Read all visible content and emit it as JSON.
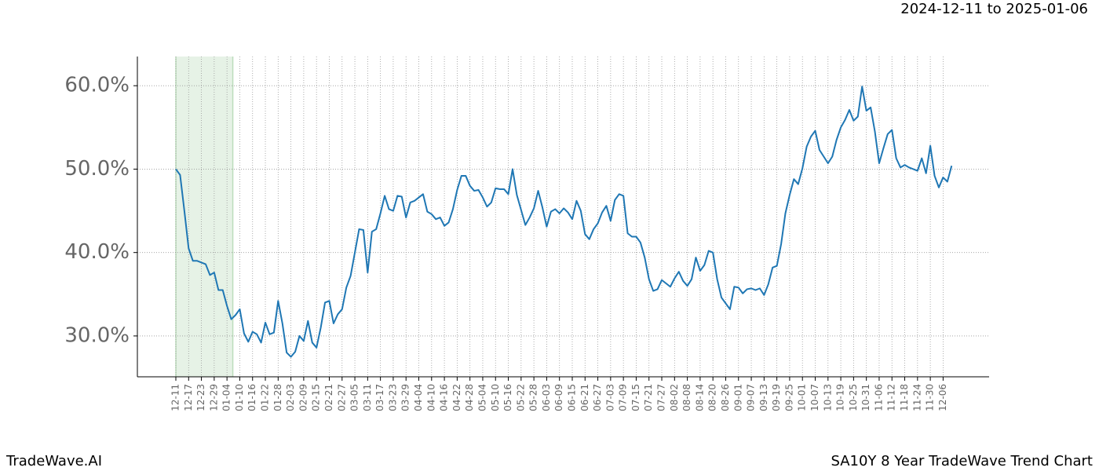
{
  "chart_data": {
    "type": "line",
    "date_range": "2024-12-11 to 2025-01-06",
    "footer_left": "TradeWave.AI",
    "footer_right": "SA10Y 8 Year TradeWave Trend Chart",
    "color": "#1f77b4",
    "grid": true,
    "shaded_range": [
      0,
      13
    ],
    "shade_color": "#e6f2e6",
    "categories": [
      "12-11",
      null,
      null,
      "12-17",
      null,
      null,
      "12-23",
      null,
      null,
      "12-29",
      null,
      null,
      "01-04",
      null,
      null,
      "01-10",
      null,
      null,
      "01-16",
      null,
      null,
      "01-22",
      null,
      null,
      "01-28",
      null,
      null,
      "02-03",
      null,
      null,
      "02-09",
      null,
      null,
      "02-15",
      null,
      null,
      "02-21",
      null,
      null,
      "02-27",
      null,
      null,
      "03-05",
      null,
      null,
      "03-11",
      null,
      null,
      "03-17",
      null,
      null,
      "03-23",
      null,
      null,
      "03-29",
      null,
      null,
      "04-04",
      null,
      null,
      "04-10",
      null,
      null,
      "04-16",
      null,
      null,
      "04-22",
      null,
      null,
      "04-28",
      null,
      null,
      "05-04",
      null,
      null,
      "05-10",
      null,
      null,
      "05-16",
      null,
      null,
      "05-22",
      null,
      null,
      "05-28",
      null,
      null,
      "06-03",
      null,
      null,
      "06-09",
      null,
      null,
      "06-15",
      null,
      null,
      "06-21",
      null,
      null,
      "06-27",
      null,
      null,
      "07-03",
      null,
      null,
      "07-09",
      null,
      null,
      "07-15",
      null,
      null,
      "07-21",
      null,
      null,
      "07-27",
      null,
      null,
      "08-02",
      null,
      null,
      "08-08",
      null,
      null,
      "08-14",
      null,
      null,
      "08-20",
      null,
      null,
      "08-26",
      null,
      null,
      "09-01",
      null,
      null,
      "09-07",
      null,
      null,
      "09-13",
      null,
      null,
      "09-19",
      null,
      null,
      "09-25",
      null,
      null,
      "10-01",
      null,
      null,
      "10-07",
      null,
      null,
      "10-13",
      null,
      null,
      "10-19",
      null,
      null,
      "10-25",
      null,
      null,
      "10-31",
      null,
      null,
      "11-06",
      null,
      null,
      "11-12",
      null,
      null,
      "11-18",
      null,
      null,
      "11-24",
      null,
      null,
      "11-30",
      null,
      null,
      "12-06",
      null,
      null
    ],
    "values": [
      50.0,
      49.3,
      45,
      40.5,
      39,
      39,
      38.8,
      38.6,
      37.3,
      37.6,
      35.5,
      35.5,
      33.6,
      32,
      32.5,
      33.2,
      30.3,
      29.3,
      30.5,
      30.2,
      29.2,
      31.6,
      30.2,
      30.4,
      34.2,
      31.5,
      28,
      27.5,
      28.1,
      30,
      29.4,
      31.8,
      29.2,
      28.6,
      31,
      34,
      34.2,
      31.5,
      32.6,
      33.2,
      35.8,
      37.2,
      40,
      42.8,
      42.7,
      37.6,
      42.5,
      42.8,
      44.7,
      46.8,
      45.2,
      45,
      46.8,
      46.7,
      44.2,
      46,
      46.2,
      46.6,
      47,
      44.9,
      44.6,
      44,
      44.2,
      43.2,
      43.6,
      45.2,
      47.5,
      49.2,
      49.2,
      48,
      47.4,
      47.5,
      46.6,
      45.5,
      46,
      47.7,
      47.6,
      47.6,
      47,
      50,
      46.9,
      45.1,
      43.3,
      44.2,
      45.3,
      47.4,
      45.4,
      43.1,
      44.9,
      45.2,
      44.7,
      45.3,
      44.8,
      44,
      46.2,
      45,
      42.2,
      41.6,
      42.8,
      43.5,
      44.8,
      45.6,
      43.8,
      46.3,
      47,
      46.8,
      42.3,
      41.9,
      41.9,
      41.2,
      39.4,
      36.8,
      35.4,
      35.6,
      36.7,
      36.3,
      35.9,
      36.9,
      37.7,
      36.6,
      36,
      36.8,
      39.4,
      37.8,
      38.5,
      40.2,
      40,
      36.8,
      34.6,
      33.9,
      33.2,
      35.9,
      35.8,
      35.1,
      35.6,
      35.7,
      35.5,
      35.7,
      34.9,
      36.2,
      38.2,
      38.4,
      41,
      44.7,
      46.9,
      48.8,
      48.2,
      50.1,
      52.7,
      53.9,
      54.6,
      52.3,
      51.5,
      50.7,
      51.5,
      53.5,
      55,
      55.9,
      57.1,
      55.8,
      56.3,
      59.9,
      57,
      57.4,
      54.5,
      50.7,
      52.5,
      54.2,
      54.7,
      51.3,
      50.2,
      50.5,
      50.2,
      50,
      49.8,
      51.3,
      49.5,
      52.8,
      49.2,
      47.8,
      49,
      48.5,
      50.4
    ],
    "ylim": [
      25.1,
      63.5
    ],
    "yticks": [
      {
        "value": 30,
        "label": "30.0%"
      },
      {
        "value": 40,
        "label": "40.0%"
      },
      {
        "value": 50,
        "label": "50.0%"
      },
      {
        "value": 60,
        "label": "60.0%"
      }
    ]
  }
}
